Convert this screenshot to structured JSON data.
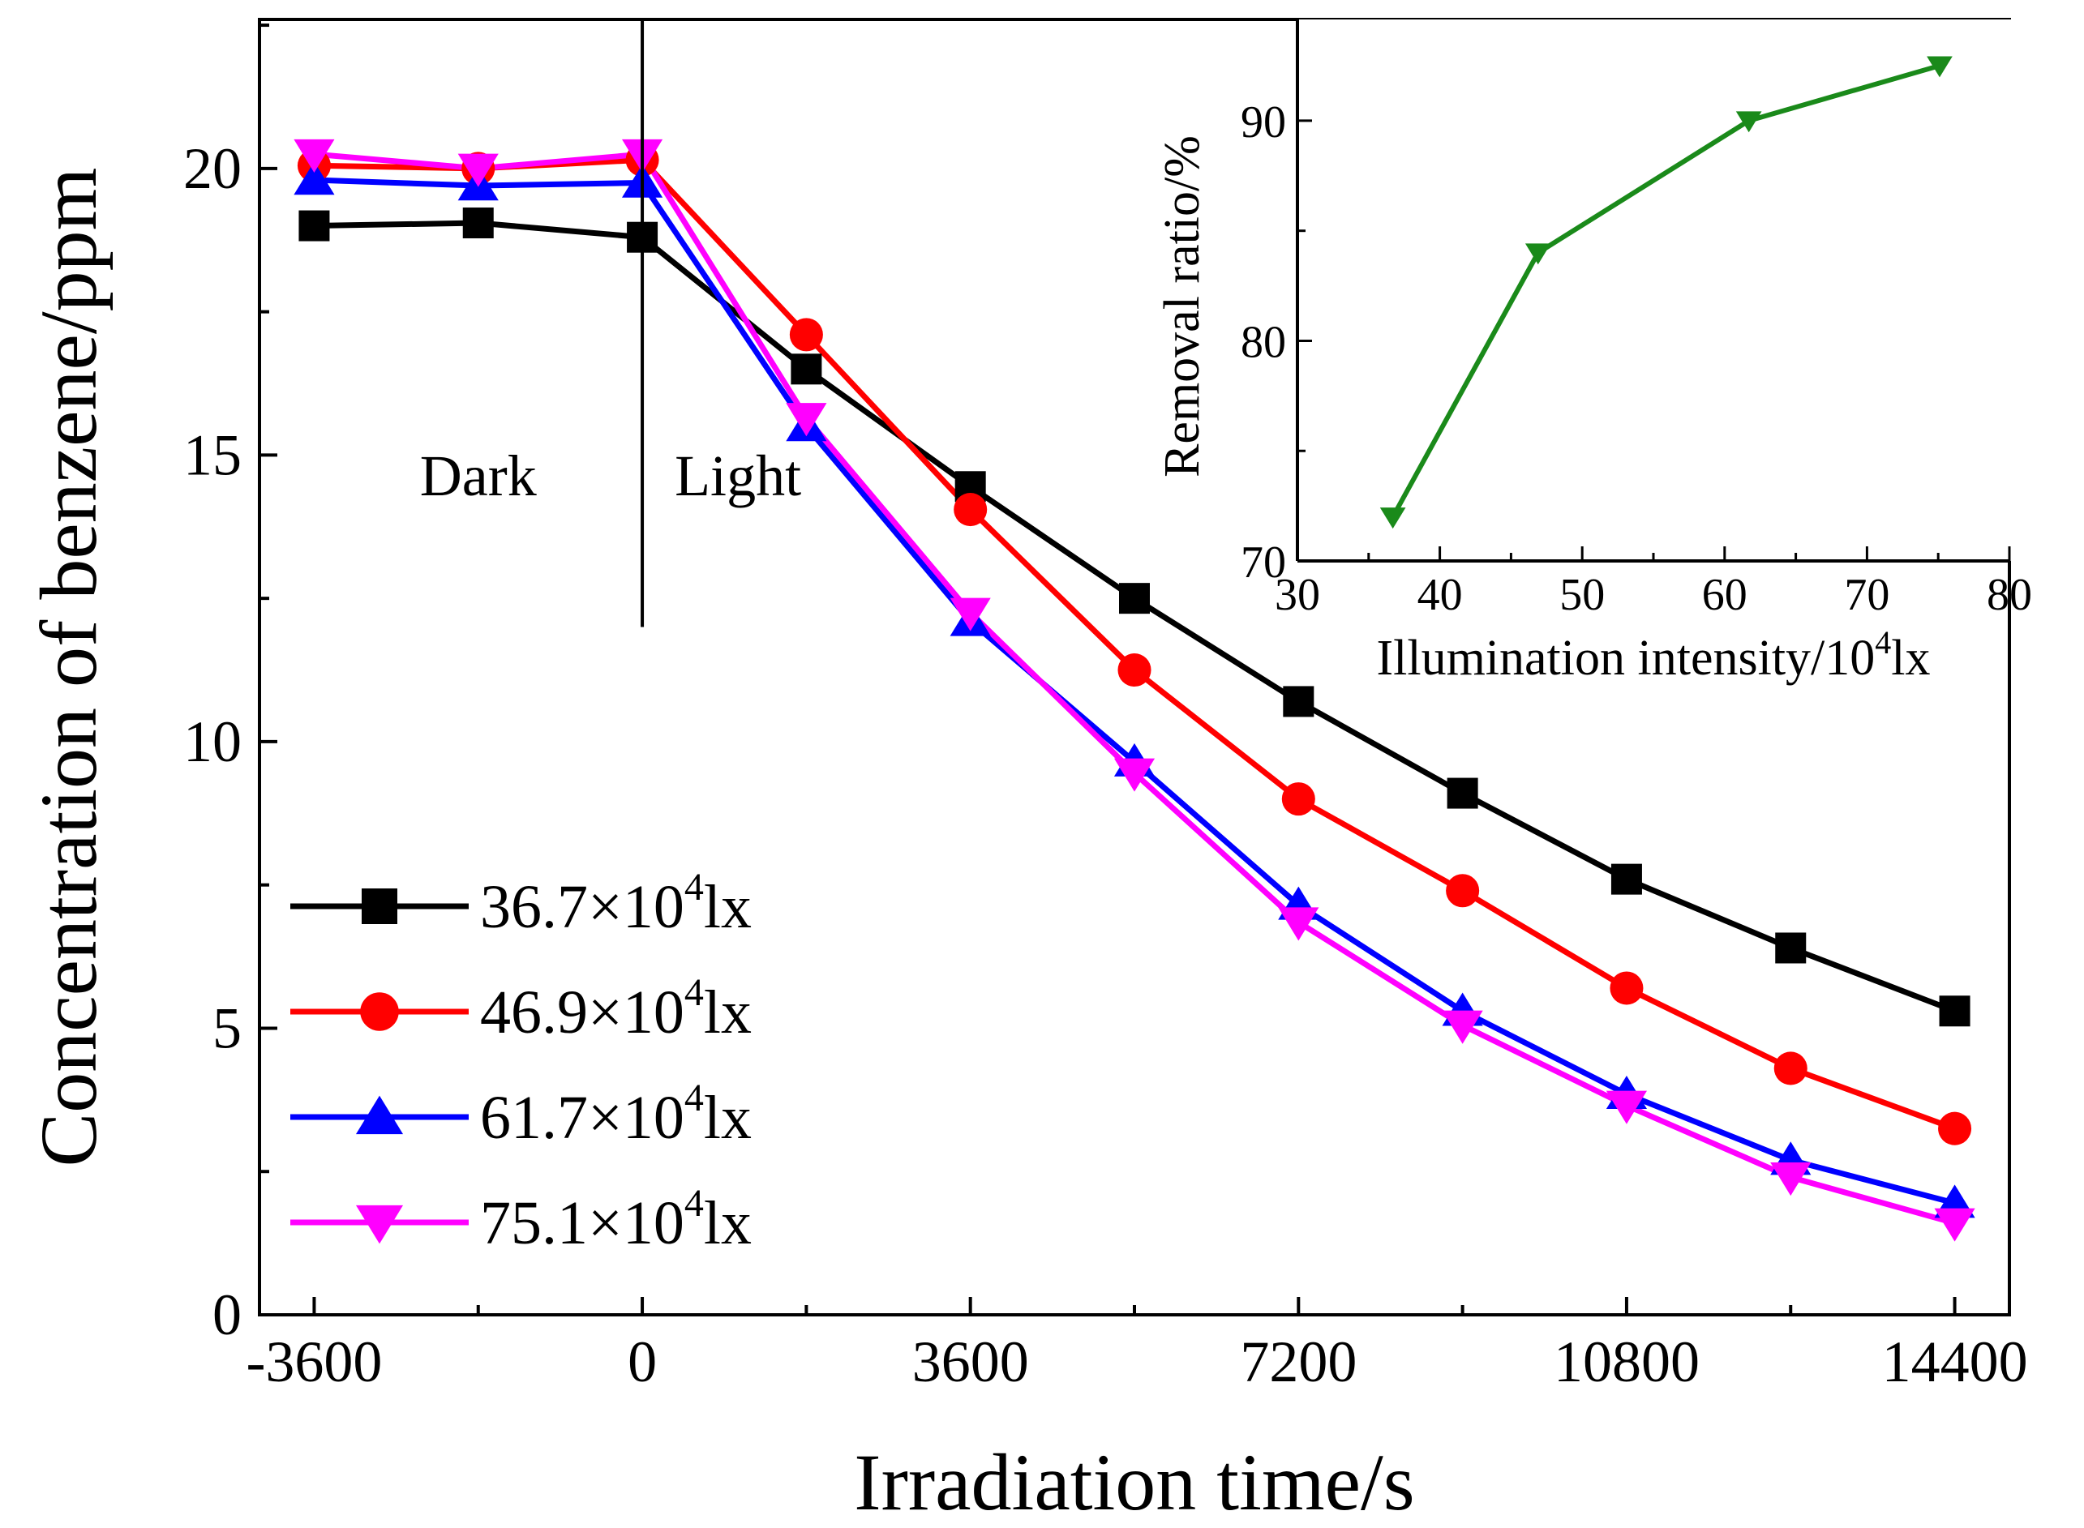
{
  "chart_data": [
    {
      "type": "line",
      "xlabel": "Irradiation time/s",
      "ylabel": "Concentration of benzene/ppm",
      "xlim": [
        -4200,
        15000
      ],
      "ylim": [
        0,
        22.6
      ],
      "xticks": [
        -3600,
        0,
        3600,
        7200,
        10800,
        14400
      ],
      "xtick_labels": [
        "-3600",
        "0",
        "3600",
        "7200",
        "10800",
        "14400"
      ],
      "yticks": [
        0,
        5,
        10,
        15,
        20
      ],
      "ytick_labels": [
        "0",
        "5",
        "10",
        "15",
        "20"
      ],
      "divider": {
        "x": 0,
        "y_from": 12,
        "y_to": 22.6
      },
      "annotations": [
        {
          "text": "Dark",
          "x": -1800,
          "y": 14.3
        },
        {
          "text": "Light",
          "x": 1050,
          "y": 14.3
        }
      ],
      "legend_position": "bottom-left",
      "x": [
        -3600,
        -1800,
        0,
        1800,
        3600,
        5400,
        7200,
        9000,
        10800,
        12600,
        14400
      ],
      "series": [
        {
          "name": "36.7×10",
          "sup": "4",
          "unit": "lx",
          "color": "#000000",
          "marker": "square",
          "values": [
            19.0,
            19.05,
            18.8,
            16.5,
            14.45,
            12.5,
            10.7,
            9.1,
            7.6,
            6.4,
            5.3
          ]
        },
        {
          "name": "46.9×10",
          "sup": "4",
          "unit": "lx",
          "color": "#ff0000",
          "marker": "circle",
          "values": [
            20.05,
            20.0,
            20.15,
            17.1,
            14.05,
            11.25,
            9.0,
            7.4,
            5.7,
            4.3,
            3.25
          ]
        },
        {
          "name": "61.7×10",
          "sup": "4",
          "unit": "lx",
          "color": "#0000ff",
          "marker": "triangle-up",
          "values": [
            19.8,
            19.7,
            19.75,
            15.5,
            12.1,
            9.65,
            7.15,
            5.3,
            3.85,
            2.7,
            1.95
          ]
        },
        {
          "name": "75.1×10",
          "sup": "4",
          "unit": "lx",
          "color": "#ff00ff",
          "marker": "triangle-down",
          "values": [
            20.25,
            20.0,
            20.25,
            15.65,
            12.25,
            9.45,
            6.85,
            5.05,
            3.65,
            2.4,
            1.6
          ]
        }
      ]
    },
    {
      "type": "line",
      "inset": true,
      "xlabel": "Illumination intensity/10",
      "xlabel_sup": "4",
      "xlabel_unit": "lx",
      "ylabel": "Removal ratio/%",
      "xlim": [
        30,
        80
      ],
      "ylim": [
        70,
        94.6
      ],
      "xticks": [
        30,
        40,
        50,
        60,
        70,
        80
      ],
      "xtick_labels": [
        "30",
        "40",
        "50",
        "60",
        "70",
        "80"
      ],
      "yticks": [
        70,
        80,
        90
      ],
      "ytick_labels": [
        "70",
        "80",
        "90"
      ],
      "series": [
        {
          "name": "Removal ratio",
          "color": "#1a8a1a",
          "marker": "triangle-down",
          "x": [
            36.7,
            46.9,
            61.7,
            75.1
          ],
          "values": [
            72.0,
            84.0,
            90.0,
            92.5
          ]
        }
      ]
    }
  ]
}
